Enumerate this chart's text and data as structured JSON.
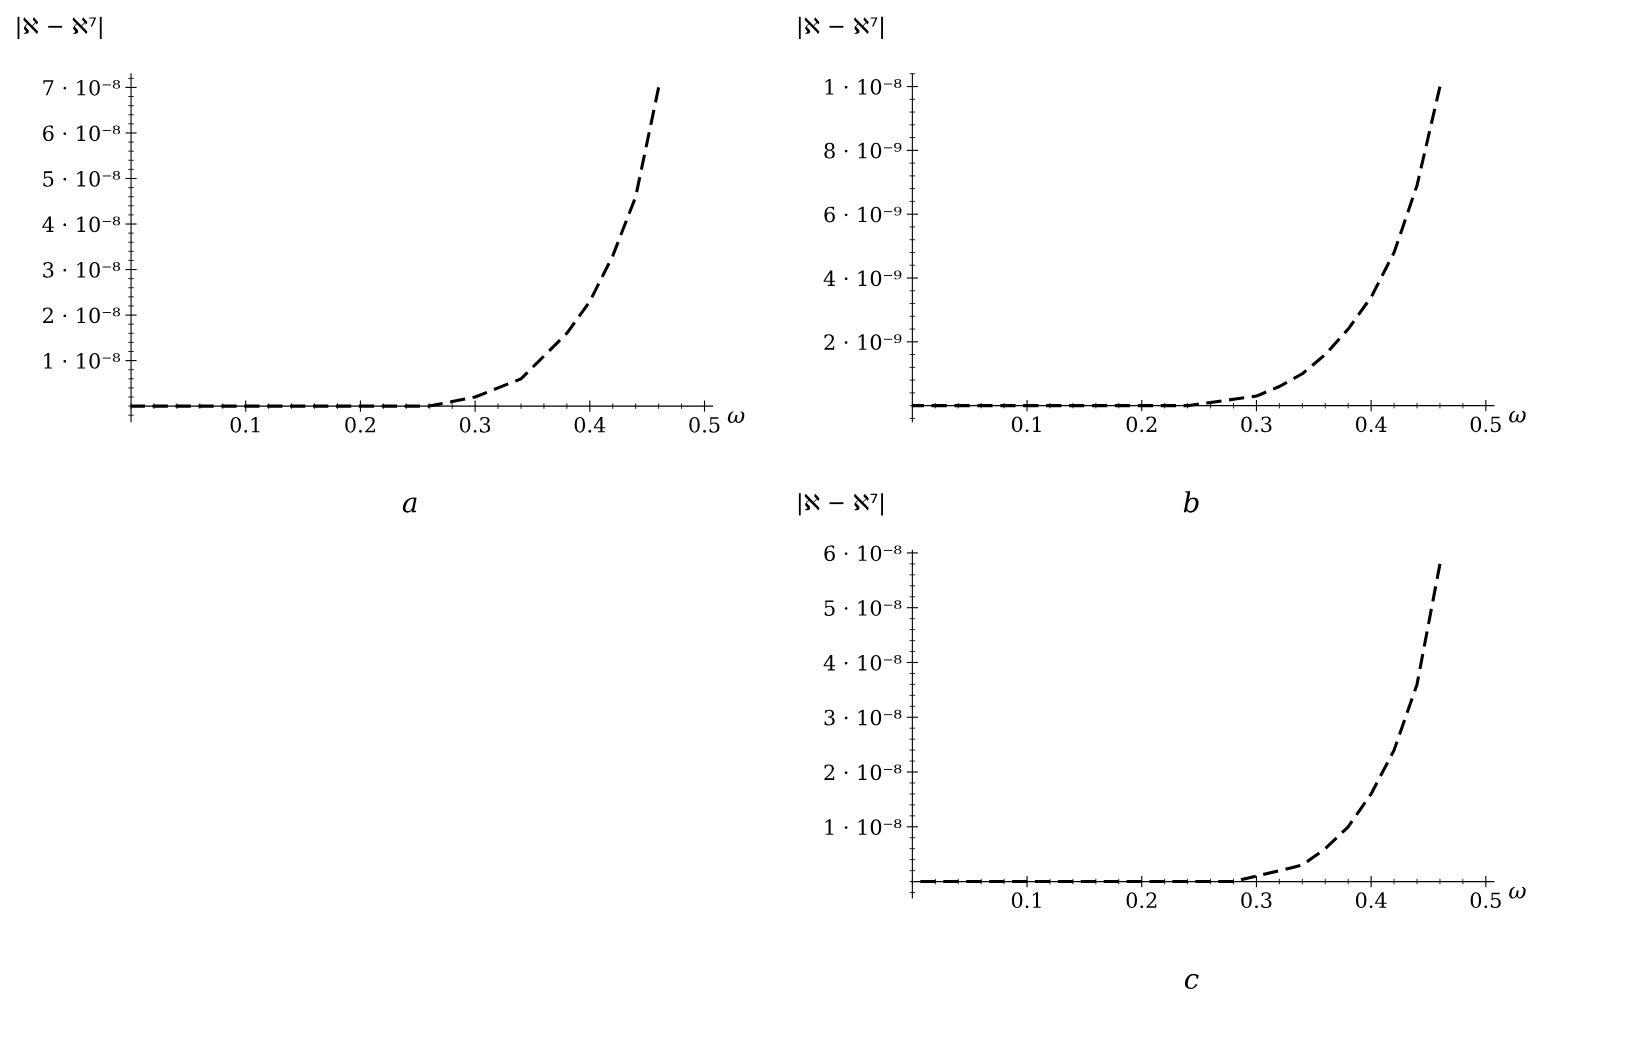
{
  "chart_data": [
    {
      "type": "line",
      "title": "a",
      "xlabel": "ω",
      "ylabel": "|ℵ − ℵ⁷|",
      "line_style": "dashed",
      "marker": "none",
      "grid": false,
      "legend": false,
      "series": [
        {
          "color": "#000000",
          "x": [
            0,
            0.05,
            0.1,
            0.15,
            0.2,
            0.22,
            0.24,
            0.26,
            0.28,
            0.3,
            0.32,
            0.34,
            0.36,
            0.38,
            0.4,
            0.42,
            0.44,
            0.46
          ],
          "values": [
            0,
            0,
            0,
            0,
            0,
            0,
            0,
            0,
            1e-09,
            2e-09,
            4e-09,
            6e-09,
            1.1e-08,
            1.6e-08,
            2.3e-08,
            3.3e-08,
            4.6e-08,
            7e-08
          ]
        }
      ],
      "xlim": [
        0,
        0.507
      ],
      "ylim": [
        -3.4e-09,
        7.3e-08
      ],
      "xticks": [
        0.1,
        0.2,
        0.3,
        0.4,
        0.5
      ],
      "yticks": [
        {
          "value": 1e-08,
          "label": "1 · 10⁻⁸"
        },
        {
          "value": 2e-08,
          "label": "2 · 10⁻⁸"
        },
        {
          "value": 3e-08,
          "label": "3 · 10⁻⁸"
        },
        {
          "value": 4e-08,
          "label": "4 · 10⁻⁸"
        },
        {
          "value": 5e-08,
          "label": "5 · 10⁻⁸"
        },
        {
          "value": 6e-08,
          "label": "6 · 10⁻⁸"
        },
        {
          "value": 7e-08,
          "label": "7 · 10⁻⁸"
        }
      ]
    },
    {
      "type": "line",
      "title": "b",
      "xlabel": "ω",
      "ylabel": "|ℵ − ℵ⁷|",
      "line_style": "dashed",
      "marker": "none",
      "grid": false,
      "legend": false,
      "series": [
        {
          "color": "#000000",
          "x": [
            0,
            0.05,
            0.1,
            0.15,
            0.2,
            0.22,
            0.24,
            0.26,
            0.28,
            0.3,
            0.32,
            0.34,
            0.36,
            0.38,
            0.4,
            0.42,
            0.44,
            0.46
          ],
          "values": [
            0,
            0,
            0,
            0,
            0,
            0,
            0,
            1e-10,
            2e-10,
            3e-10,
            6e-10,
            1e-09,
            1.6e-09,
            2.4e-09,
            3.4e-09,
            4.8e-09,
            6.9e-09,
            1e-08
          ]
        }
      ],
      "xlim": [
        0,
        0.507
      ],
      "ylim": [
        -5e-10,
        1.04e-08
      ],
      "xticks": [
        0.1,
        0.2,
        0.3,
        0.4,
        0.5
      ],
      "yticks": [
        {
          "value": 2e-09,
          "label": "2 · 10⁻⁹"
        },
        {
          "value": 4e-09,
          "label": "4 · 10⁻⁹"
        },
        {
          "value": 6e-09,
          "label": "6 · 10⁻⁹"
        },
        {
          "value": 8e-09,
          "label": "8 · 10⁻⁹"
        },
        {
          "value": 1e-08,
          "label": "1 · 10⁻⁸"
        }
      ]
    },
    {
      "type": "line",
      "title": "c",
      "xlabel": "ω",
      "ylabel": "|ℵ − ℵ⁷|",
      "line_style": "dashed",
      "marker": "none",
      "grid": false,
      "legend": false,
      "series": [
        {
          "color": "#000000",
          "x": [
            0,
            0.05,
            0.1,
            0.15,
            0.2,
            0.22,
            0.24,
            0.26,
            0.28,
            0.3,
            0.32,
            0.34,
            0.36,
            0.38,
            0.4,
            0.42,
            0.44,
            0.46
          ],
          "values": [
            0,
            0,
            0,
            0,
            0,
            0,
            0,
            0,
            0,
            1e-09,
            2e-09,
            3e-09,
            6e-09,
            1e-08,
            1.6e-08,
            2.4e-08,
            3.6e-08,
            5.8e-08
          ]
        }
      ],
      "xlim": [
        0,
        0.507
      ],
      "ylim": [
        -3e-09,
        6.05e-08
      ],
      "xticks": [
        0.1,
        0.2,
        0.3,
        0.4,
        0.5
      ],
      "yticks": [
        {
          "value": 1e-08,
          "label": "1 · 10⁻⁸"
        },
        {
          "value": 2e-08,
          "label": "2 · 10⁻⁸"
        },
        {
          "value": 3e-08,
          "label": "3 · 10⁻⁸"
        },
        {
          "value": 4e-08,
          "label": "4 · 10⁻⁸"
        },
        {
          "value": 5e-08,
          "label": "5 · 10⁻⁸"
        },
        {
          "value": 6e-08,
          "label": "6 · 10⁻⁸"
        }
      ]
    }
  ]
}
